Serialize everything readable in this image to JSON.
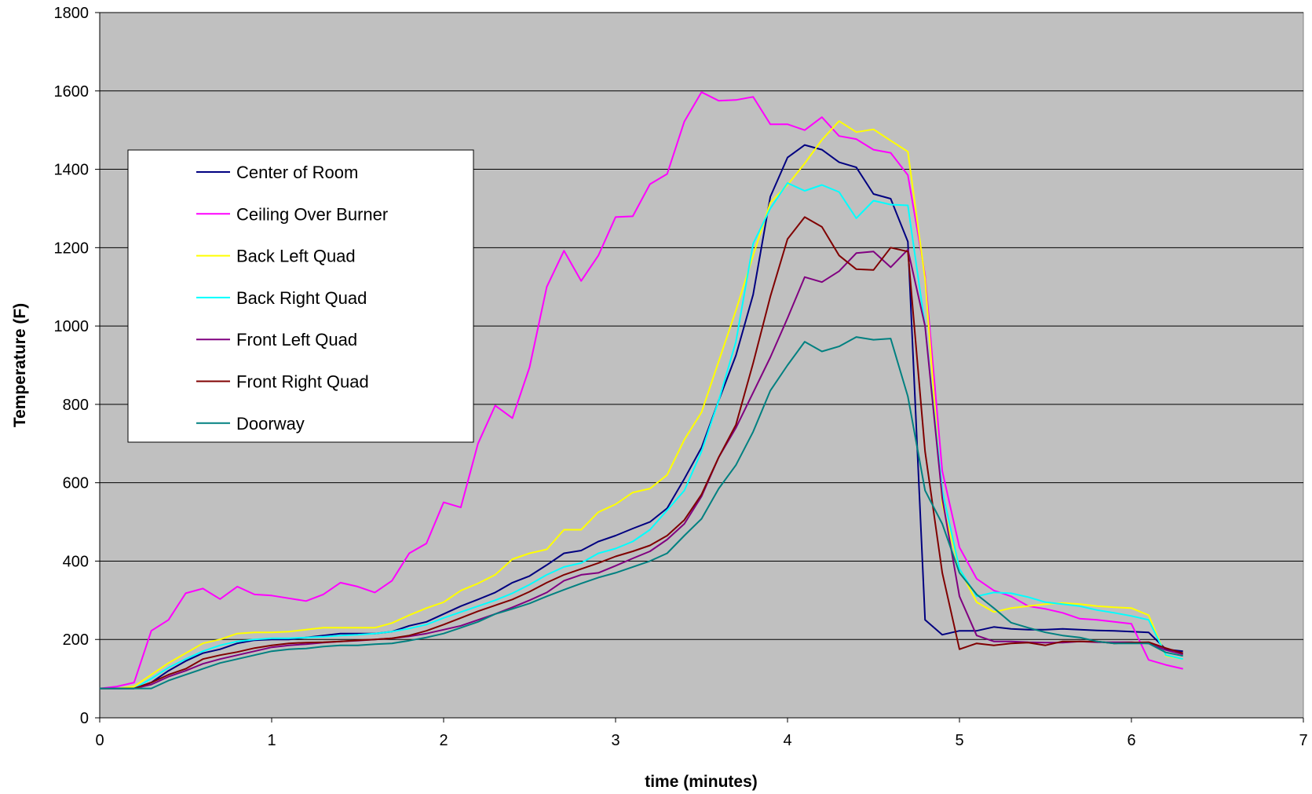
{
  "chart_data": {
    "type": "line",
    "xlabel": "time (minutes)",
    "ylabel": "Temperature (F)",
    "xlim": [
      0,
      7
    ],
    "ylim": [
      0,
      1800
    ],
    "x_ticks": [
      "0",
      "1",
      "2",
      "3",
      "4",
      "5",
      "6",
      "7"
    ],
    "y_ticks": [
      "0",
      "200",
      "400",
      "600",
      "800",
      "1000",
      "1200",
      "1400",
      "1600",
      "1800"
    ],
    "grid": "horizontal",
    "legend_position": "upper-left",
    "plot_background": "#C0C0C0",
    "x": [
      0,
      0.1,
      0.2,
      0.3,
      0.4,
      0.5,
      0.6,
      0.7,
      0.8,
      0.9,
      1,
      1.1,
      1.2,
      1.3,
      1.4,
      1.5,
      1.6,
      1.7,
      1.8,
      1.9,
      2,
      2.1,
      2.2,
      2.3,
      2.4,
      2.5,
      2.6,
      2.7,
      2.8,
      2.9,
      3,
      3.1,
      3.2,
      3.3,
      3.4,
      3.5,
      3.6,
      3.7,
      3.8,
      3.9,
      4,
      4.1,
      4.2,
      4.3,
      4.4,
      4.5,
      4.6,
      4.7,
      4.8,
      4.9,
      5,
      5.1,
      5.2,
      5.3,
      5.4,
      5.5,
      5.6,
      5.7,
      5.8,
      5.9,
      6,
      6.1,
      6.2,
      6.3
    ],
    "series": [
      {
        "name": "Center of Room",
        "color": "#000080",
        "values": [
          75,
          75,
          75,
          90,
          120,
          145,
          165,
          175,
          190,
          198,
          200,
          200,
          205,
          210,
          215,
          215,
          215,
          220,
          235,
          245,
          265,
          285,
          302,
          320,
          345,
          362,
          390,
          420,
          427,
          450,
          465,
          483,
          500,
          535,
          610,
          690,
          810,
          925,
          1080,
          1330,
          1430,
          1462,
          1450,
          1418,
          1405,
          1337,
          1325,
          1215,
          250,
          212,
          222,
          222,
          232,
          227,
          225,
          225,
          227,
          225,
          223,
          222,
          220,
          218,
          175,
          170
        ]
      },
      {
        "name": "Ceiling Over Burner",
        "color": "#FF00FF",
        "values": [
          75,
          80,
          90,
          222,
          250,
          318,
          330,
          303,
          335,
          315,
          312,
          305,
          298,
          315,
          345,
          335,
          320,
          350,
          420,
          445,
          550,
          537,
          700,
          797,
          765,
          895,
          1100,
          1192,
          1115,
          1180,
          1278,
          1280,
          1362,
          1388,
          1522,
          1597,
          1575,
          1577,
          1585,
          1515,
          1515,
          1500,
          1533,
          1485,
          1477,
          1450,
          1442,
          1385,
          1130,
          630,
          435,
          355,
          325,
          310,
          285,
          278,
          268,
          253,
          250,
          245,
          240,
          148,
          135,
          125
        ]
      },
      {
        "name": "Back Left Quad",
        "color": "#FFFF00",
        "values": [
          75,
          75,
          80,
          110,
          140,
          165,
          190,
          200,
          215,
          218,
          218,
          220,
          225,
          230,
          230,
          230,
          230,
          242,
          262,
          280,
          295,
          325,
          343,
          365,
          405,
          420,
          430,
          480,
          480,
          525,
          545,
          575,
          585,
          620,
          710,
          780,
          910,
          1040,
          1180,
          1315,
          1360,
          1415,
          1475,
          1523,
          1495,
          1502,
          1473,
          1445,
          1120,
          545,
          380,
          295,
          270,
          280,
          285,
          290,
          293,
          290,
          285,
          282,
          280,
          262,
          158,
          150
        ]
      },
      {
        "name": "Back Right Quad",
        "color": "#00FFFF",
        "values": [
          75,
          75,
          75,
          100,
          128,
          150,
          170,
          185,
          195,
          200,
          203,
          203,
          205,
          207,
          210,
          212,
          215,
          220,
          228,
          238,
          255,
          270,
          285,
          300,
          318,
          340,
          365,
          385,
          395,
          420,
          432,
          450,
          480,
          530,
          580,
          680,
          810,
          960,
          1210,
          1300,
          1365,
          1345,
          1360,
          1342,
          1275,
          1320,
          1310,
          1308,
          1000,
          580,
          380,
          310,
          320,
          318,
          308,
          295,
          290,
          285,
          275,
          268,
          260,
          250,
          160,
          150
        ]
      },
      {
        "name": "Front Left Quad",
        "color": "#800080",
        "values": [
          75,
          75,
          75,
          85,
          105,
          120,
          138,
          150,
          160,
          170,
          180,
          185,
          188,
          192,
          195,
          197,
          200,
          203,
          208,
          215,
          225,
          235,
          250,
          265,
          282,
          300,
          320,
          350,
          365,
          370,
          388,
          407,
          425,
          455,
          495,
          565,
          665,
          740,
          830,
          920,
          1020,
          1125,
          1112,
          1140,
          1186,
          1190,
          1150,
          1195,
          1000,
          560,
          310,
          210,
          195,
          195,
          193,
          192,
          192,
          195,
          193,
          193,
          193,
          190,
          173,
          162
        ]
      },
      {
        "name": "Front Right Quad",
        "color": "#800000",
        "values": [
          75,
          75,
          75,
          90,
          110,
          125,
          150,
          160,
          168,
          178,
          185,
          190,
          192,
          193,
          195,
          198,
          200,
          203,
          210,
          222,
          238,
          255,
          272,
          287,
          302,
          322,
          345,
          365,
          380,
          395,
          412,
          425,
          440,
          465,
          505,
          570,
          665,
          748,
          905,
          1075,
          1222,
          1278,
          1253,
          1180,
          1145,
          1143,
          1200,
          1190,
          680,
          370,
          175,
          190,
          185,
          190,
          192,
          185,
          195,
          195,
          195,
          190,
          192,
          193,
          178,
          165
        ]
      },
      {
        "name": "Doorway",
        "color": "#008080",
        "values": [
          75,
          75,
          75,
          75,
          95,
          110,
          125,
          140,
          150,
          160,
          170,
          175,
          177,
          182,
          185,
          185,
          188,
          190,
          197,
          205,
          215,
          230,
          245,
          265,
          278,
          292,
          310,
          327,
          343,
          358,
          370,
          385,
          400,
          420,
          465,
          508,
          585,
          645,
          730,
          835,
          900,
          960,
          935,
          948,
          972,
          965,
          968,
          820,
          580,
          495,
          370,
          315,
          280,
          243,
          230,
          218,
          210,
          205,
          195,
          190,
          190,
          190,
          167,
          158
        ]
      }
    ]
  },
  "legend": {
    "items": [
      "Center of Room",
      "Ceiling Over Burner",
      "Back Left Quad",
      "Back Right Quad",
      "Front Left Quad",
      "Front Right Quad",
      "Doorway"
    ],
    "colors": [
      "#000080",
      "#FF00FF",
      "#FFFF00",
      "#00FFFF",
      "#800080",
      "#800000",
      "#008080"
    ]
  }
}
